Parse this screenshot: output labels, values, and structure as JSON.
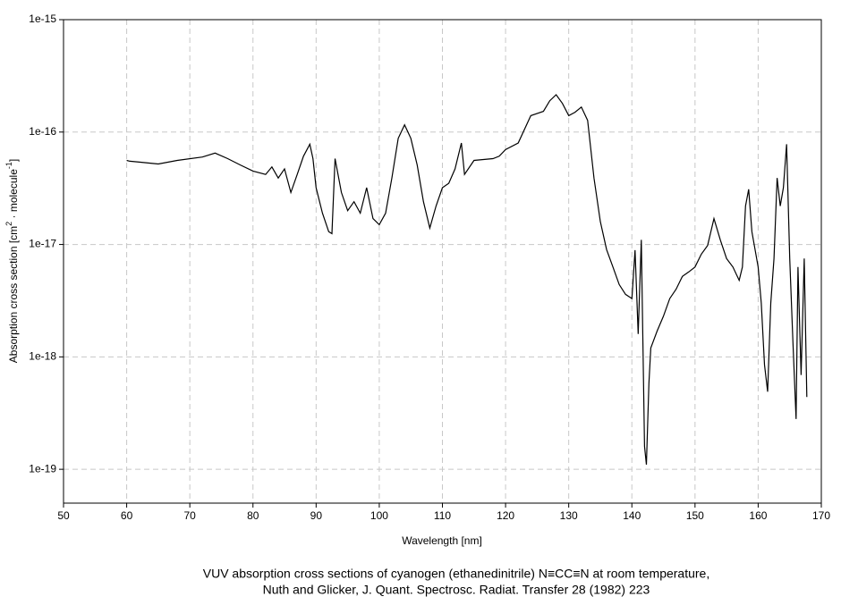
{
  "chart_data": {
    "type": "line",
    "xlabel": "Wavelength [nm]",
    "ylabel_parts": [
      "Absorption cross section [cm",
      "2",
      " · molecule",
      "-1",
      "]"
    ],
    "caption": [
      "VUV absorption cross sections of cyanogen (ethanedinitrile) N≡CC≡N at room temperature,",
      "Nuth and Glicker, J. Quant. Spectrosc. Radiat. Transfer 28 (1982) 223"
    ],
    "xlim": [
      50,
      170
    ],
    "xticks": [
      50,
      60,
      70,
      80,
      90,
      100,
      110,
      120,
      130,
      140,
      150,
      160,
      170
    ],
    "ylim": [
      5e-20,
      1e-15
    ],
    "yticks": [
      1e-19,
      1e-18,
      1e-17,
      1e-16,
      1e-15
    ],
    "ylog": true,
    "grid": true,
    "series": [
      {
        "color": "#000000",
        "x": [
          60,
          60.5,
          62,
          65,
          68,
          72,
          74,
          76,
          78,
          80,
          82,
          83,
          84,
          85,
          86,
          87,
          88,
          89,
          89.5,
          90,
          91,
          92,
          92.5,
          93,
          94,
          95,
          96,
          97,
          98,
          99,
          100,
          101,
          102,
          103,
          104,
          105,
          106,
          107,
          108,
          109,
          110,
          111,
          112,
          113,
          113.5,
          115,
          118,
          119,
          120,
          122,
          124,
          126,
          127,
          128,
          129,
          130,
          131,
          132,
          133,
          134,
          135,
          136,
          137,
          138,
          139,
          140,
          140.5,
          141,
          141.5,
          142,
          142.3,
          142.7,
          143,
          144,
          145,
          146,
          147,
          148,
          149,
          150,
          151,
          152,
          153,
          154,
          155,
          156,
          157,
          157.5,
          158,
          158.5,
          159,
          160,
          160.5,
          161,
          161.5,
          162,
          162.5,
          163,
          163.5,
          164,
          164.5,
          165,
          165.5,
          166,
          166.3,
          166.8,
          167.3,
          167.7
        ],
        "values": [
          5.6e-17,
          5.5e-17,
          5.4e-17,
          5.2e-17,
          5.6e-17,
          6e-17,
          6.5e-17,
          5.8e-17,
          5.1e-17,
          4.5e-17,
          4.2e-17,
          4.9e-17,
          3.9e-17,
          4.7e-17,
          2.9e-17,
          4.2e-17,
          6.1e-17,
          7.8e-17,
          5.8e-17,
          3.2e-17,
          1.9e-17,
          1.3e-17,
          1.25e-17,
          5.8e-17,
          2.9e-17,
          2e-17,
          2.4e-17,
          1.9e-17,
          3.2e-17,
          1.7e-17,
          1.5e-17,
          1.9e-17,
          3.9e-17,
          8.8e-17,
          1.16e-16,
          8.8e-17,
          5.1e-17,
          2.4e-17,
          1.4e-17,
          2.2e-17,
          3.2e-17,
          3.5e-17,
          4.7e-17,
          8e-17,
          4.2e-17,
          5.6e-17,
          5.8e-17,
          6.1e-17,
          7e-17,
          8e-17,
          1.4e-16,
          1.53e-16,
          1.9e-16,
          2.15e-16,
          1.8e-16,
          1.4e-16,
          1.5e-16,
          1.67e-16,
          1.27e-16,
          3.9e-17,
          1.6e-17,
          9e-18,
          6.3e-18,
          4.4e-18,
          3.6e-18,
          3.3e-18,
          8.9e-18,
          1.6e-18,
          1.1e-17,
          1.6e-19,
          1.1e-19,
          5.8e-19,
          1.2e-18,
          1.7e-18,
          2.3e-18,
          3.3e-18,
          4e-18,
          5.2e-18,
          5.7e-18,
          6.3e-18,
          8.2e-18,
          9.8e-18,
          1.7e-17,
          1.1e-17,
          7.5e-18,
          6.3e-18,
          4.8e-18,
          6.3e-18,
          2.2e-17,
          3.1e-17,
          1.3e-17,
          6.3e-18,
          3e-18,
          8.5e-19,
          4.9e-19,
          3e-18,
          7.5e-18,
          3.9e-17,
          2.2e-17,
          3.2e-17,
          7.8e-17,
          7.5e-18,
          1.4e-18,
          2.8e-19,
          6.3e-18,
          6.9e-19,
          7.5e-18,
          4.4e-19
        ]
      }
    ]
  }
}
